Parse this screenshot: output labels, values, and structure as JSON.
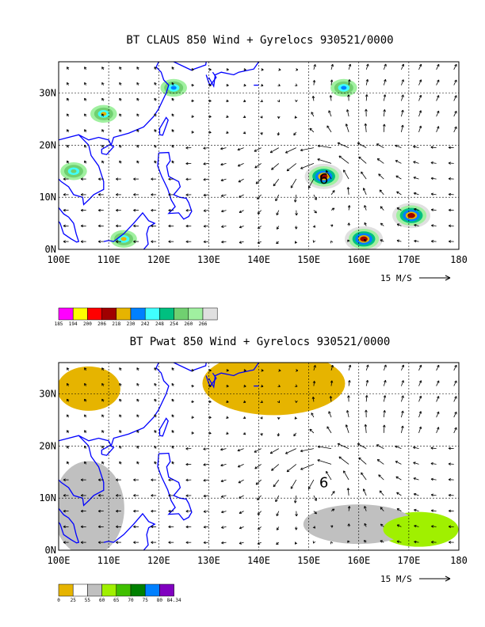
{
  "chart_data": [
    {
      "type": "heatmap",
      "title": "BT CLAUS 850 Wind + Gyrelocs 930521/0000",
      "x_ticks": [
        "100E",
        "110E",
        "120E",
        "130E",
        "140E",
        "150E",
        "160E",
        "170E",
        "180"
      ],
      "y_ticks": [
        "0N",
        "10N",
        "20N",
        "30N"
      ],
      "xlim": [
        100,
        180
      ],
      "ylim": [
        0,
        36
      ],
      "grid": true,
      "vector_scale_label": "15 M/S",
      "gyre_marker": {
        "label": "6",
        "lon": 153,
        "lat": 13.5
      },
      "colorbar": {
        "labels": [
          "185",
          "194",
          "200",
          "206",
          "218",
          "230",
          "242",
          "248",
          "254",
          "260",
          "266"
        ],
        "colors": [
          "#ff00ff",
          "#ffff00",
          "#ff0000",
          "#a00000",
          "#e6b400",
          "#0080ff",
          "#40ffff",
          "#00c080",
          "#70d070",
          "#a0f0a0",
          "#e0e0e0"
        ]
      },
      "features": [
        {
          "name": "cloud-cluster-east-1",
          "lon": 170.5,
          "lat": 6.5,
          "peak_color": "#a00000"
        },
        {
          "name": "cloud-cluster-east-2",
          "lon": 161,
          "lat": 2,
          "peak_color": "#a00000"
        },
        {
          "name": "cloud-cluster-gyre",
          "lon": 153,
          "lat": 14,
          "peak_color": "#a00000"
        },
        {
          "name": "cloud-cluster-china",
          "lon": 109,
          "lat": 26,
          "peak_color": "#e6b400"
        },
        {
          "name": "cloud-band-north-1",
          "lon": 123,
          "lat": 31,
          "peak_color": "#0080ff"
        },
        {
          "name": "cloud-band-north-2",
          "lon": 157,
          "lat": 31,
          "peak_color": "#0080ff"
        },
        {
          "name": "cloud-cluster-indochina",
          "lon": 103,
          "lat": 15,
          "peak_color": "#70d070"
        },
        {
          "name": "cloud-cluster-borneo",
          "lon": 113,
          "lat": 2,
          "peak_color": "#e6b400"
        }
      ]
    },
    {
      "type": "heatmap",
      "title": "BT Pwat 850 Wind + Gyrelocs 930521/0000",
      "x_ticks": [
        "100E",
        "110E",
        "120E",
        "130E",
        "140E",
        "150E",
        "160E",
        "170E",
        "180"
      ],
      "y_ticks": [
        "0N",
        "10N",
        "20N",
        "30N"
      ],
      "xlim": [
        100,
        180
      ],
      "ylim": [
        0,
        36
      ],
      "grid": true,
      "vector_scale_label": "15 M/S",
      "gyre_marker": {
        "label": "6",
        "lon": 153,
        "lat": 13
      },
      "colorbar": {
        "labels": [
          "0",
          "25",
          "55",
          "60",
          "65",
          "70",
          "75",
          "80",
          "84.34"
        ],
        "colors": [
          "#e6b400",
          "#ffffff",
          "#c0c0c0",
          "#a0f000",
          "#40c000",
          "#008000",
          "#0080ff",
          "#8000c0"
        ]
      },
      "features": [
        {
          "name": "dry-region-northwest",
          "lon": 106,
          "lat": 31,
          "color": "#e6b400"
        },
        {
          "name": "dry-region-north",
          "lon": 143,
          "lat": 32,
          "color": "#e6b400"
        },
        {
          "name": "moist-region-east",
          "lon": 172,
          "lat": 4,
          "color": "#a0f000"
        },
        {
          "name": "moist-region-west",
          "lon": 106,
          "lat": 8,
          "color": "#c0c0c0"
        }
      ]
    }
  ]
}
